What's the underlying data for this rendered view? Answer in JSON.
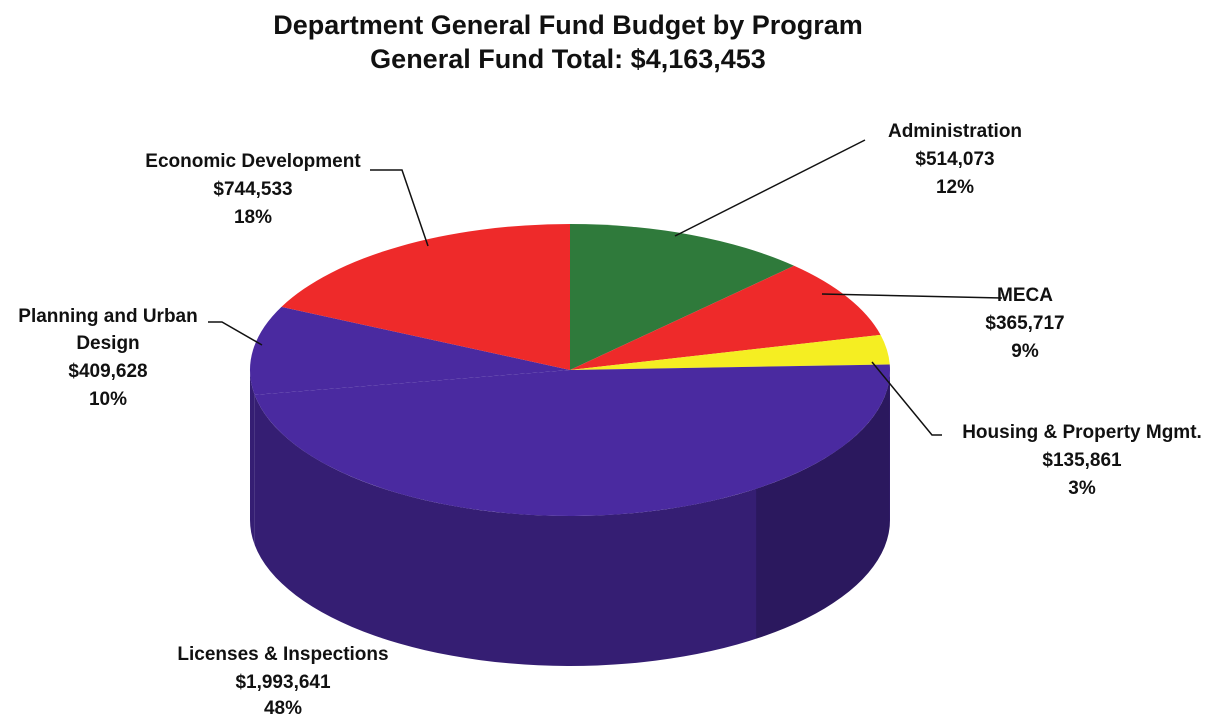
{
  "chart_data": {
    "type": "pie",
    "title": "Department General Fund Budget by Program",
    "subtitle": "General Fund Total: $4,163,453",
    "slices": [
      {
        "name": "Administration",
        "value": 514073,
        "value_label": "$514,073",
        "percent_label": "12%",
        "color": "#2f7a3b"
      },
      {
        "name": "MECA",
        "value": 365717,
        "value_label": "$365,717",
        "percent_label": "9%",
        "color": "#ee2a2a"
      },
      {
        "name": "Housing & Property Mgmt.",
        "value": 135861,
        "value_label": "$135,861",
        "percent_label": "3%",
        "color": "#f5ee22"
      },
      {
        "name": "Licenses & Inspections",
        "value": 1993641,
        "value_label": "$1,993,641",
        "percent_label": "48%",
        "color": "#4a2aa0"
      },
      {
        "name": "Planning and Urban Design",
        "name_lines": [
          "Planning and Urban",
          "Design"
        ],
        "value": 409628,
        "value_label": "$409,628",
        "percent_label": "10%",
        "color": "#4a2aa0"
      },
      {
        "name": "Economic Development",
        "value": 744533,
        "value_label": "$744,533",
        "percent_label": "18%",
        "color": "#ee2a2a"
      }
    ]
  }
}
